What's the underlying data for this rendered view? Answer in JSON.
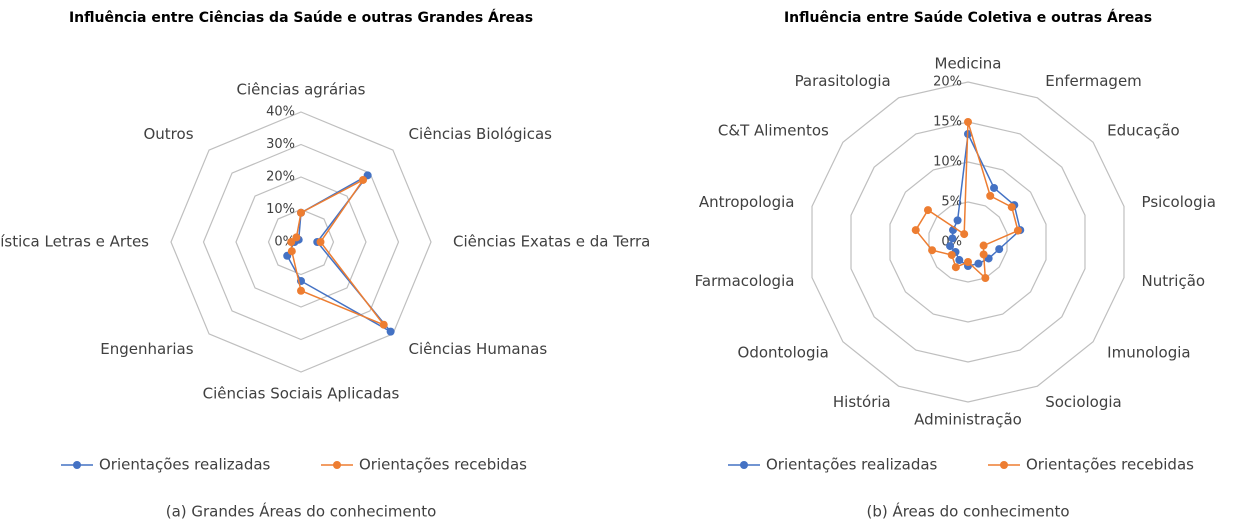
{
  "chart_data": [
    {
      "type": "radar",
      "title": "Influência entre Ciências da Saúde e outras Grandes Áreas",
      "caption": "(a) Grandes Áreas do conhecimento",
      "categories": [
        "Ciências agrárias",
        "Ciências Biológicas",
        "Ciências Exatas e da Terra",
        "Ciências Humanas",
        "Ciências Sociais Aplicadas",
        "Engenharias",
        "Linguística Letras e Artes",
        "Outros"
      ],
      "series": [
        {
          "name": "Orientações realizadas",
          "color": "#4472c4",
          "values": [
            9,
            29,
            5,
            39,
            12,
            6,
            2,
            1
          ]
        },
        {
          "name": "Orientações recebidas",
          "color": "#ed7d31",
          "values": [
            9,
            27,
            6,
            36,
            15,
            4,
            3,
            2
          ]
        }
      ],
      "ylim": [
        0,
        40
      ],
      "yticks": [
        {
          "value": 0,
          "label": "0%"
        },
        {
          "value": 10,
          "label": "10%"
        },
        {
          "value": 20,
          "label": "20%"
        },
        {
          "value": 30,
          "label": "30%"
        },
        {
          "value": 40,
          "label": "40%"
        }
      ],
      "grid": true,
      "legend": "bottom"
    },
    {
      "type": "radar",
      "title": "Influência entre Saúde Coletiva e outras Áreas",
      "caption": "(b) Áreas do conhecimento",
      "categories": [
        "Medicina",
        "Enfermagem",
        "Educação",
        "Psicologia",
        "Nutrição",
        "Imunologia",
        "Sociologia",
        "Administração",
        "História",
        "Odontologia",
        "Farmacologia",
        "Antropologia",
        "C&T Alimentos",
        "Parasitologia"
      ],
      "series": [
        {
          "name": "Orientações realizadas",
          "color": "#4472c4",
          "values": [
            13.5,
            7.5,
            7.4,
            6.7,
            4,
            3.3,
            3,
            3,
            2.5,
            2,
            2.3,
            2,
            2.4,
            3
          ]
        },
        {
          "name": "Orientações recebidas",
          "color": "#ed7d31",
          "values": [
            15,
            6.4,
            7,
            6.4,
            2,
            2.5,
            5,
            2.5,
            3.5,
            2.6,
            4.6,
            6.7,
            6.4,
            1.1
          ]
        }
      ],
      "ylim": [
        0,
        20
      ],
      "yticks": [
        {
          "value": 0,
          "label": "0%"
        },
        {
          "value": 5,
          "label": "5%"
        },
        {
          "value": 10,
          "label": "10%"
        },
        {
          "value": 15,
          "label": "15%"
        },
        {
          "value": 20,
          "label": "20%"
        }
      ],
      "grid": true,
      "legend": "bottom"
    }
  ]
}
